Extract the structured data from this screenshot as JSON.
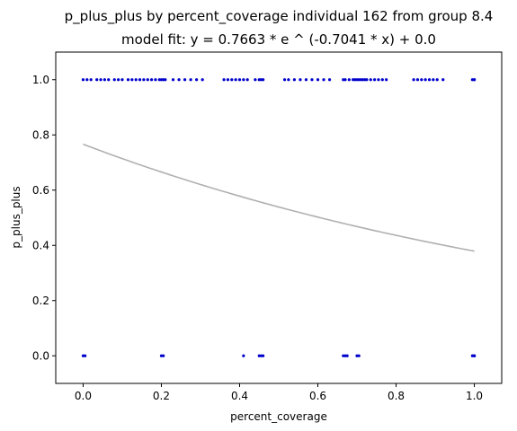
{
  "chart_data": {
    "type": "scatter",
    "title": "p_plus_plus by percent_coverage individual 162 from group 8.4",
    "subtitle": "model fit: y = 0.7663 * e ^ (-0.7041 * x) + 0.0",
    "xlabel": "percent_coverage",
    "ylabel": "p_plus_plus",
    "xlim": [
      -0.07,
      1.07
    ],
    "ylim": [
      -0.1,
      1.1
    ],
    "x_ticks": [
      0.0,
      0.2,
      0.4,
      0.6,
      0.8,
      1.0
    ],
    "x_tick_labels": [
      "0.0",
      "0.2",
      "0.4",
      "0.6",
      "0.8",
      "1.0"
    ],
    "y_ticks": [
      0.0,
      0.2,
      0.4,
      0.6,
      0.8,
      1.0
    ],
    "y_tick_labels": [
      "0.0",
      "0.2",
      "0.4",
      "0.6",
      "0.8",
      "1.0"
    ],
    "grid": false,
    "legend": "none",
    "point_color": "#0000cc",
    "fit_color": "#b0b0b0",
    "fit": {
      "a": 0.7663,
      "b": -0.7041,
      "c": 0.0,
      "x_range": [
        0.0,
        1.0
      ]
    },
    "series": [
      {
        "x": [
          0.0,
          0.005,
          0.2,
          0.205,
          0.41,
          0.45,
          0.455,
          0.46,
          0.665,
          0.67,
          0.675,
          0.7,
          0.705,
          0.995,
          1.0,
          1.0,
          1.0
        ],
        "y": [
          0,
          0,
          0,
          0,
          0,
          0,
          0,
          0,
          0,
          0,
          0,
          0,
          0,
          0,
          0,
          0,
          0
        ]
      },
      {
        "x": [
          0.0,
          0.01,
          0.02,
          0.035,
          0.045,
          0.055,
          0.065,
          0.08,
          0.09,
          0.1,
          0.115,
          0.125,
          0.135,
          0.145,
          0.155,
          0.165,
          0.175,
          0.185,
          0.195,
          0.2,
          0.205,
          0.21,
          0.23,
          0.245,
          0.26,
          0.275,
          0.29,
          0.305,
          0.36,
          0.37,
          0.38,
          0.39,
          0.4,
          0.41,
          0.42,
          0.44,
          0.45,
          0.455,
          0.46,
          0.515,
          0.525,
          0.54,
          0.555,
          0.57,
          0.585,
          0.6,
          0.615,
          0.63,
          0.665,
          0.67,
          0.68,
          0.69,
          0.695,
          0.7,
          0.705,
          0.71,
          0.715,
          0.72,
          0.725,
          0.735,
          0.745,
          0.755,
          0.765,
          0.775,
          0.845,
          0.855,
          0.865,
          0.875,
          0.885,
          0.895,
          0.905,
          0.92,
          0.995,
          1.0,
          1.0
        ],
        "y": [
          1,
          1,
          1,
          1,
          1,
          1,
          1,
          1,
          1,
          1,
          1,
          1,
          1,
          1,
          1,
          1,
          1,
          1,
          1,
          1,
          1,
          1,
          1,
          1,
          1,
          1,
          1,
          1,
          1,
          1,
          1,
          1,
          1,
          1,
          1,
          1,
          1,
          1,
          1,
          1,
          1,
          1,
          1,
          1,
          1,
          1,
          1,
          1,
          1,
          1,
          1,
          1,
          1,
          1,
          1,
          1,
          1,
          1,
          1,
          1,
          1,
          1,
          1,
          1,
          1,
          1,
          1,
          1,
          1,
          1,
          1,
          1,
          1,
          1,
          1
        ]
      }
    ]
  }
}
